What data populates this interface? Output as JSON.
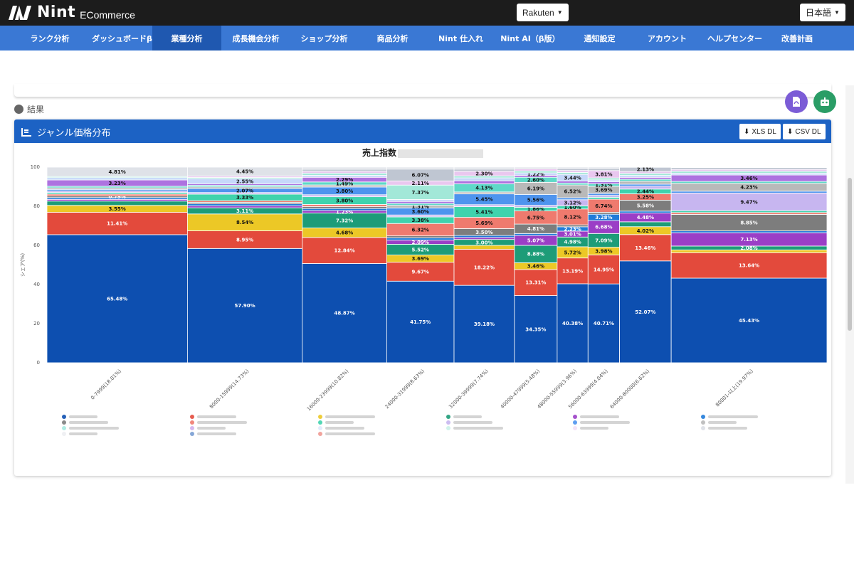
{
  "app": {
    "logo_text": "Nint",
    "logo_sub": "ECommerce"
  },
  "header": {
    "marketplace": "Rakuten",
    "language": "日本語"
  },
  "nav": {
    "items": [
      {
        "label": "ランク分析"
      },
      {
        "label": "ダッシュボードβ版"
      },
      {
        "label": "業種分析",
        "active": true
      },
      {
        "label": "成長機会分析"
      },
      {
        "label": "ショップ分析"
      },
      {
        "label": "商品分析"
      },
      {
        "label": "Nint 仕入れ"
      },
      {
        "label": "Nint AI（β版）"
      },
      {
        "label": "通知設定"
      },
      {
        "label": "アカウント"
      },
      {
        "label": "ヘルプセンター"
      },
      {
        "label": "改善計画"
      }
    ]
  },
  "section": {
    "result_label": "結果"
  },
  "panel": {
    "title": "ジャンル価格分布",
    "xls_button": "XLS DL",
    "csv_button": "CSV DL"
  },
  "fab": {
    "pdf_icon": "pdf-file-icon",
    "bot_icon": "robot-icon",
    "pdf_color": "#7b5cd6",
    "bot_color": "#2a9d66"
  },
  "colors": {
    "nav": "#3a78d4",
    "nav_active": "#1f58b0",
    "panel_header": "#1c62c4"
  },
  "chart_data": {
    "type": "bar",
    "subtype": "stacked-mekko",
    "title": "売上指数",
    "ylabel": "シェア(%)",
    "ylim": [
      0,
      100
    ],
    "yticks": [
      0,
      20,
      40,
      60,
      80,
      100
    ],
    "categories": [
      "0-7999(18.01%)",
      "8000-15999(14.73%)",
      "16000-23999(10.82%)",
      "24000-31999(8.63%)",
      "32000-39999(7.74%)",
      "40000-47999(5.48%)",
      "48000-55999(3.96%)",
      "56000-63999(4.04%)",
      "64000-80000(6.62%)",
      "80001-以上(19.97%)"
    ],
    "column_shares": [
      18.01,
      14.73,
      10.82,
      8.63,
      7.74,
      5.48,
      3.96,
      4.04,
      6.62,
      19.97
    ],
    "palette": [
      "#0d4fb0",
      "#e34a3c",
      "#ecc826",
      "#1d9c78",
      "#9b3ec6",
      "#1f7bd9",
      "#7d7d7d",
      "#ef7a6e",
      "#3fd3ad",
      "#c7b6f0",
      "#4e94ee",
      "#b9b9b9",
      "#5fd9c8",
      "#ad72e0",
      "#c6d8fa",
      "#a2e8d8",
      "#e9c7ef",
      "#bfc6d2",
      "#dfe2e8"
    ],
    "columns": [
      {
        "values": [
          65.48,
          11.41,
          3.55,
          2.2,
          0.9,
          0.9,
          0.79,
          1.0,
          0.8,
          0.8,
          0.8,
          0.8,
          0.8,
          3.23,
          1.2,
          0.53,
          0.0,
          0.0,
          4.81
        ],
        "labels": [
          "65.48%",
          "11.41%",
          "3.55%",
          "",
          "",
          "",
          "0.79%",
          "",
          "",
          "",
          "",
          "",
          "",
          "3.23%",
          "",
          "",
          "",
          "",
          "4.81%"
        ]
      },
      {
        "values": [
          57.9,
          8.95,
          8.54,
          3.11,
          1.0,
          1.0,
          0.8,
          0.8,
          3.33,
          0.8,
          2.07,
          0.8,
          0.8,
          0.8,
          2.55,
          0.6,
          0.8,
          0.0,
          4.45
        ],
        "labels": [
          "57.90%",
          "8.95%",
          "8.54%",
          "3.11%",
          "",
          "",
          "",
          "",
          "3.33%",
          "",
          "2.07%",
          "",
          "",
          "",
          "2.55%",
          "",
          "",
          "",
          "4.45%"
        ]
      },
      {
        "values": [
          48.87,
          12.84,
          4.68,
          7.32,
          1.23,
          1.0,
          1.0,
          1.0,
          3.8,
          1.0,
          3.8,
          1.0,
          1.49,
          2.29,
          1.0,
          1.0,
          1.0,
          1.0,
          1.0
        ],
        "labels": [
          "48.87%",
          "12.84%",
          "4.68%",
          "7.32%",
          "1.23%",
          "",
          "",
          "",
          "3.80%",
          "",
          "3.80%",
          "",
          "1.49%",
          "2.29%",
          "",
          "",
          "",
          "",
          ""
        ]
      },
      {
        "values": [
          41.75,
          9.67,
          3.69,
          5.52,
          2.09,
          1.2,
          1.0,
          6.32,
          3.38,
          1.0,
          3.6,
          1.31,
          1.0,
          1.0,
          1.0,
          7.37,
          2.11,
          6.07,
          1.0
        ],
        "labels": [
          "41.75%",
          "9.67%",
          "3.69%",
          "5.52%",
          "2.09%",
          "",
          "",
          "6.32%",
          "3.38%",
          "",
          "3.60%",
          "1.31%",
          "",
          "",
          "",
          "7.37%",
          "2.11%",
          "6.07%",
          ""
        ]
      },
      {
        "values": [
          39.18,
          18.22,
          2.0,
          3.0,
          1.0,
          1.0,
          3.5,
          5.69,
          5.41,
          1.0,
          5.45,
          1.0,
          4.13,
          1.5,
          1.5,
          1.0,
          2.3,
          1.12,
          1.0
        ],
        "labels": [
          "39.18%",
          "18.22%",
          "",
          "3.00%",
          "",
          "",
          "3.50%",
          "5.69%",
          "5.41%",
          "",
          "5.45%",
          "",
          "4.13%",
          "",
          "",
          "",
          "2.30%",
          "",
          ""
        ]
      },
      {
        "values": [
          34.35,
          13.31,
          3.46,
          8.88,
          5.07,
          1.0,
          4.81,
          6.75,
          1.86,
          1.0,
          5.56,
          6.19,
          2.6,
          1.0,
          1.22,
          1.0,
          1.0,
          0.0,
          0.94
        ],
        "labels": [
          "34.35%",
          "13.31%",
          "3.46%",
          "8.88%",
          "5.07%",
          "",
          "4.81%",
          "6.75%",
          "1.86%",
          "",
          "5.56%",
          "6.19%",
          "2.60%",
          "",
          "1.22%",
          "",
          "",
          "",
          ""
        ]
      },
      {
        "values": [
          40.38,
          13.19,
          5.72,
          4.98,
          3.01,
          2.23,
          1.0,
          8.12,
          1.6,
          3.12,
          1.0,
          6.52,
          1.0,
          1.0,
          3.44,
          1.0,
          1.0,
          1.0,
          0.69
        ],
        "labels": [
          "40.38%",
          "13.19%",
          "5.72%",
          "4.98%",
          "3.01%",
          "2.23%",
          "",
          "8.12%",
          "1.60%",
          "3.12%",
          "",
          "6.52%",
          "",
          "",
          "3.44%",
          "",
          "",
          "",
          ""
        ]
      },
      {
        "values": [
          40.71,
          14.95,
          3.98,
          7.09,
          6.68,
          3.28,
          1.0,
          6.74,
          1.0,
          1.0,
          1.0,
          3.69,
          1.31,
          1.0,
          1.0,
          1.0,
          3.81,
          1.0,
          0.76
        ],
        "labels": [
          "40.71%",
          "14.95%",
          "3.98%",
          "7.09%",
          "6.68%",
          "3.28%",
          "",
          "6.74%",
          "",
          "",
          "",
          "3.69%",
          "1.31%",
          "",
          "",
          "",
          "3.81%",
          "",
          ""
        ]
      },
      {
        "values": [
          52.07,
          13.46,
          4.02,
          2.5,
          4.48,
          1.0,
          5.58,
          3.25,
          2.44,
          1.5,
          1.0,
          1.5,
          1.0,
          1.0,
          1.0,
          1.0,
          1.0,
          2.13,
          0.07
        ],
        "labels": [
          "52.07%",
          "13.46%",
          "4.02%",
          "",
          "4.48%",
          "",
          "5.58%",
          "3.25%",
          "2.44%",
          "",
          "",
          "",
          "",
          "",
          "",
          "",
          "",
          "2.13%",
          ""
        ]
      },
      {
        "values": [
          45.43,
          13.64,
          1.5,
          2.08,
          7.13,
          1.0,
          8.85,
          1.0,
          1.0,
          9.47,
          1.0,
          4.23,
          1.0,
          3.46,
          1.0,
          1.0,
          1.0,
          1.0,
          0.21
        ],
        "labels": [
          "45.43%",
          "13.64%",
          "",
          "2.08%",
          "7.13%",
          "",
          "8.85%",
          "",
          "",
          "9.47%",
          "",
          "4.23%",
          "",
          "3.46%",
          "",
          "",
          "",
          "",
          ""
        ]
      }
    ]
  }
}
